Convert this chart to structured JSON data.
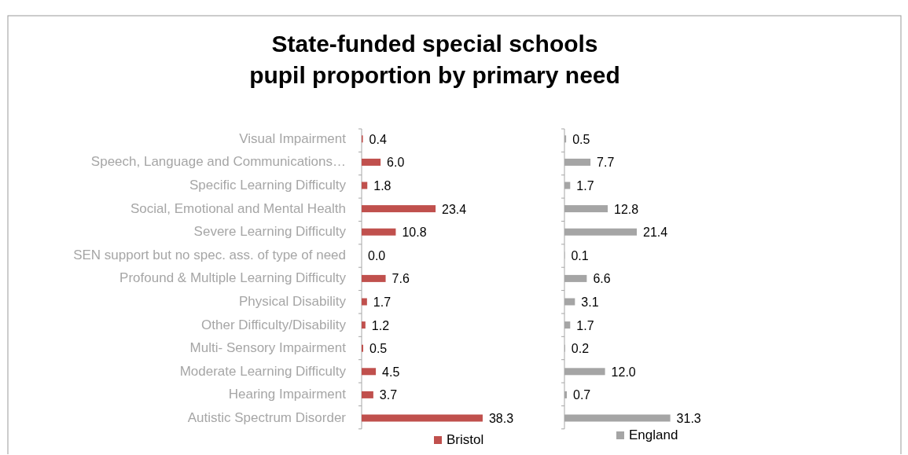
{
  "chart_data": [
    {
      "type": "bar",
      "orientation": "horizontal",
      "title": "State-funded special schools\npupil proportion by primary need",
      "categories": [
        "Visual Impairment",
        "Speech, Language and Communications…",
        "Specific Learning Difficulty",
        "Social, Emotional and Mental Health",
        "Severe Learning Difficulty",
        "SEN support but no spec. ass. of type of need",
        "Profound & Multiple Learning Difficulty",
        "Physical Disability",
        "Other Difficulty/Disability",
        "Multi- Sensory Impairment",
        "Moderate Learning Difficulty",
        "Hearing Impairment",
        "Autistic Spectrum Disorder"
      ],
      "series": [
        {
          "name": "Bristol",
          "color": "#c0504d",
          "values": [
            0.4,
            6.0,
            1.8,
            23.4,
            10.8,
            0.0,
            7.6,
            1.7,
            1.2,
            0.5,
            4.5,
            3.7,
            38.3
          ],
          "value_labels": [
            "0.4",
            "6.0",
            "1.8",
            "23.4",
            "10.8",
            "0.0",
            "7.6",
            "1.7",
            "1.2",
            "0.5",
            "4.5",
            "3.7",
            "38.3"
          ]
        }
      ],
      "legend": "bottom"
    },
    {
      "type": "bar",
      "orientation": "horizontal",
      "categories": [
        null,
        null,
        null,
        null,
        null,
        null,
        null,
        null,
        null,
        null,
        null,
        null,
        null
      ],
      "series": [
        {
          "name": "England",
          "color": "#a5a5a5",
          "values": [
            0.5,
            7.7,
            1.7,
            12.8,
            21.4,
            0.1,
            6.6,
            3.1,
            1.7,
            0.2,
            12.0,
            0.7,
            31.3
          ],
          "value_labels": [
            "0.5",
            "7.7",
            "1.7",
            "12.8",
            "21.4",
            "0.1",
            "6.6",
            "3.1",
            "1.7",
            "0.2",
            "12.0",
            "0.7",
            "31.3"
          ]
        }
      ],
      "legend": "bottom"
    }
  ]
}
